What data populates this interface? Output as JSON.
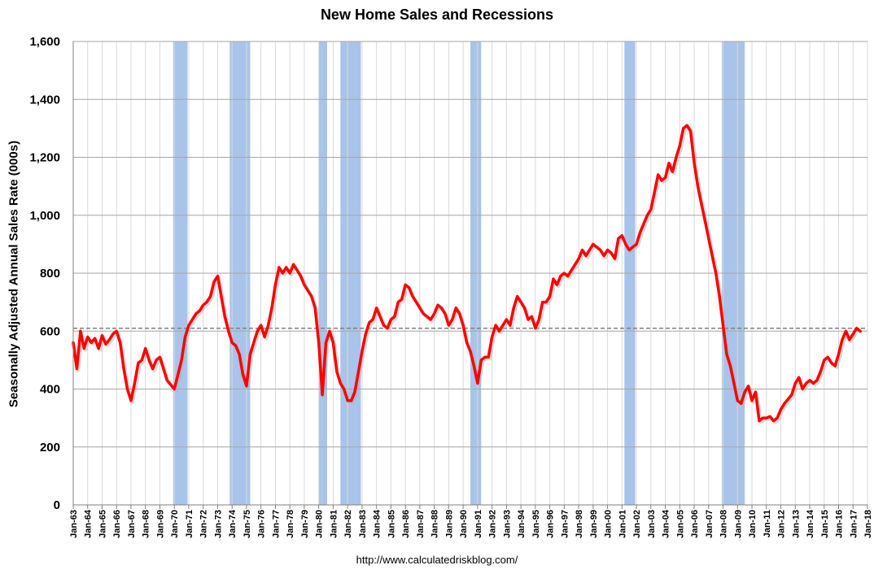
{
  "chart_data": {
    "type": "line",
    "title": "New Home Sales and Recessions",
    "xlabel": "",
    "ylabel": "Seasonally Adjusted Annual Sales Rate (000s)",
    "source": "http://www.calculatedriskblog.com/",
    "ylim": [
      0,
      1600
    ],
    "xlim": [
      "Jan-63",
      "Jan-18"
    ],
    "y_ticks": [
      "0",
      "200",
      "400",
      "600",
      "800",
      "1,000",
      "1,200",
      "1,400",
      "1,600"
    ],
    "x_ticks": [
      "Jan-63",
      "Jan-64",
      "Jan-65",
      "Jan-66",
      "Jan-67",
      "Jan-68",
      "Jan-69",
      "Jan-70",
      "Jan-71",
      "Jan-72",
      "Jan-73",
      "Jan-74",
      "Jan-75",
      "Jan-76",
      "Jan-77",
      "Jan-78",
      "Jan-79",
      "Jan-80",
      "Jan-81",
      "Jan-82",
      "Jan-83",
      "Jan-84",
      "Jan-85",
      "Jan-86",
      "Jan-87",
      "Jan-88",
      "Jan-89",
      "Jan-90",
      "Jan-91",
      "Jan-92",
      "Jan-93",
      "Jan-94",
      "Jan-95",
      "Jan-96",
      "Jan-97",
      "Jan-98",
      "Jan-99",
      "Jan-00",
      "Jan-01",
      "Jan-02",
      "Jan-03",
      "Jan-04",
      "Jan-05",
      "Jan-06",
      "Jan-07",
      "Jan-08",
      "Jan-09",
      "Jan-10",
      "Jan-11",
      "Jan-12",
      "Jan-13",
      "Jan-14",
      "Jan-15",
      "Jan-16",
      "Jan-17",
      "Jan-18"
    ],
    "grid": "vertical and horizontal",
    "reference_line": 610,
    "recessions": [
      {
        "start": "Dec-69",
        "end": "Nov-70"
      },
      {
        "start": "Nov-73",
        "end": "Mar-75"
      },
      {
        "start": "Jan-80",
        "end": "Jul-80"
      },
      {
        "start": "Jul-81",
        "end": "Nov-82"
      },
      {
        "start": "Jul-90",
        "end": "Mar-91"
      },
      {
        "start": "Mar-01",
        "end": "Nov-01"
      },
      {
        "start": "Dec-07",
        "end": "Jun-09"
      }
    ],
    "series": [
      {
        "values": [
          [
            "Jan-63",
            560
          ],
          [
            "Apr-63",
            470
          ],
          [
            "Jul-63",
            600
          ],
          [
            "Oct-63",
            540
          ],
          [
            "Jan-64",
            580
          ],
          [
            "Apr-64",
            560
          ],
          [
            "Jul-64",
            575
          ],
          [
            "Oct-64",
            540
          ],
          [
            "Jan-65",
            585
          ],
          [
            "Apr-65",
            555
          ],
          [
            "Jul-65",
            570
          ],
          [
            "Oct-65",
            590
          ],
          [
            "Jan-66",
            600
          ],
          [
            "Apr-66",
            560
          ],
          [
            "Jul-66",
            470
          ],
          [
            "Oct-66",
            400
          ],
          [
            "Jan-67",
            360
          ],
          [
            "Apr-67",
            420
          ],
          [
            "Jul-67",
            490
          ],
          [
            "Oct-67",
            500
          ],
          [
            "Jan-68",
            540
          ],
          [
            "Apr-68",
            500
          ],
          [
            "Jul-68",
            470
          ],
          [
            "Oct-68",
            500
          ],
          [
            "Jan-69",
            510
          ],
          [
            "Apr-69",
            470
          ],
          [
            "Jul-69",
            430
          ],
          [
            "Oct-69",
            415
          ],
          [
            "Jan-70",
            400
          ],
          [
            "Apr-70",
            450
          ],
          [
            "Jul-70",
            500
          ],
          [
            "Oct-70",
            580
          ],
          [
            "Jan-71",
            620
          ],
          [
            "Apr-71",
            640
          ],
          [
            "Jul-71",
            660
          ],
          [
            "Oct-71",
            670
          ],
          [
            "Jan-72",
            690
          ],
          [
            "Apr-72",
            700
          ],
          [
            "Jul-72",
            720
          ],
          [
            "Oct-72",
            770
          ],
          [
            "Jan-73",
            790
          ],
          [
            "Apr-73",
            720
          ],
          [
            "Jul-73",
            650
          ],
          [
            "Oct-73",
            600
          ],
          [
            "Jan-74",
            560
          ],
          [
            "Apr-74",
            550
          ],
          [
            "Jul-74",
            520
          ],
          [
            "Oct-74",
            450
          ],
          [
            "Jan-75",
            410
          ],
          [
            "Apr-75",
            520
          ],
          [
            "Jul-75",
            560
          ],
          [
            "Oct-75",
            600
          ],
          [
            "Jan-76",
            620
          ],
          [
            "Apr-76",
            580
          ],
          [
            "Jul-76",
            620
          ],
          [
            "Oct-76",
            680
          ],
          [
            "Jan-77",
            760
          ],
          [
            "Apr-77",
            820
          ],
          [
            "Jul-77",
            800
          ],
          [
            "Oct-77",
            820
          ],
          [
            "Jan-78",
            800
          ],
          [
            "Apr-78",
            830
          ],
          [
            "Jul-78",
            810
          ],
          [
            "Oct-78",
            790
          ],
          [
            "Jan-79",
            760
          ],
          [
            "Apr-79",
            740
          ],
          [
            "Jul-79",
            720
          ],
          [
            "Oct-79",
            680
          ],
          [
            "Jan-80",
            560
          ],
          [
            "Apr-80",
            380
          ],
          [
            "Jul-80",
            560
          ],
          [
            "Oct-80",
            600
          ],
          [
            "Jan-81",
            560
          ],
          [
            "Apr-81",
            460
          ],
          [
            "Jul-81",
            420
          ],
          [
            "Oct-81",
            400
          ],
          [
            "Jan-82",
            360
          ],
          [
            "Apr-82",
            360
          ],
          [
            "Jul-82",
            390
          ],
          [
            "Oct-82",
            460
          ],
          [
            "Jan-83",
            530
          ],
          [
            "Apr-83",
            590
          ],
          [
            "Jul-83",
            630
          ],
          [
            "Oct-83",
            640
          ],
          [
            "Jan-84",
            680
          ],
          [
            "Apr-84",
            650
          ],
          [
            "Jul-84",
            620
          ],
          [
            "Oct-84",
            610
          ],
          [
            "Jan-85",
            640
          ],
          [
            "Apr-85",
            650
          ],
          [
            "Jul-85",
            700
          ],
          [
            "Oct-85",
            710
          ],
          [
            "Jan-86",
            760
          ],
          [
            "Apr-86",
            750
          ],
          [
            "Jul-86",
            720
          ],
          [
            "Oct-86",
            700
          ],
          [
            "Jan-87",
            680
          ],
          [
            "Apr-87",
            660
          ],
          [
            "Jul-87",
            650
          ],
          [
            "Oct-87",
            640
          ],
          [
            "Jan-88",
            660
          ],
          [
            "Apr-88",
            690
          ],
          [
            "Jul-88",
            680
          ],
          [
            "Oct-88",
            660
          ],
          [
            "Jan-89",
            620
          ],
          [
            "Apr-89",
            640
          ],
          [
            "Jul-89",
            680
          ],
          [
            "Oct-89",
            660
          ],
          [
            "Jan-90",
            620
          ],
          [
            "Apr-90",
            560
          ],
          [
            "Jul-90",
            530
          ],
          [
            "Oct-90",
            480
          ],
          [
            "Jan-91",
            420
          ],
          [
            "Apr-91",
            500
          ],
          [
            "Jul-91",
            510
          ],
          [
            "Oct-91",
            510
          ],
          [
            "Jan-92",
            580
          ],
          [
            "Apr-92",
            620
          ],
          [
            "Jul-92",
            600
          ],
          [
            "Oct-92",
            620
          ],
          [
            "Jan-93",
            640
          ],
          [
            "Apr-93",
            620
          ],
          [
            "Jul-93",
            680
          ],
          [
            "Oct-93",
            720
          ],
          [
            "Jan-94",
            700
          ],
          [
            "Apr-94",
            680
          ],
          [
            "Jul-94",
            640
          ],
          [
            "Oct-94",
            650
          ],
          [
            "Jan-95",
            610
          ],
          [
            "Apr-95",
            640
          ],
          [
            "Jul-95",
            700
          ],
          [
            "Oct-95",
            700
          ],
          [
            "Jan-96",
            720
          ],
          [
            "Apr-96",
            780
          ],
          [
            "Jul-96",
            760
          ],
          [
            "Oct-96",
            790
          ],
          [
            "Jan-97",
            800
          ],
          [
            "Apr-97",
            790
          ],
          [
            "Jul-97",
            810
          ],
          [
            "Oct-97",
            830
          ],
          [
            "Jan-98",
            850
          ],
          [
            "Apr-98",
            880
          ],
          [
            "Jul-98",
            860
          ],
          [
            "Oct-98",
            880
          ],
          [
            "Jan-99",
            900
          ],
          [
            "Apr-99",
            890
          ],
          [
            "Jul-99",
            880
          ],
          [
            "Oct-99",
            860
          ],
          [
            "Jan-00",
            880
          ],
          [
            "Apr-00",
            870
          ],
          [
            "Jul-00",
            850
          ],
          [
            "Oct-00",
            920
          ],
          [
            "Jan-01",
            930
          ],
          [
            "Apr-01",
            900
          ],
          [
            "Jul-01",
            880
          ],
          [
            "Oct-01",
            890
          ],
          [
            "Jan-02",
            900
          ],
          [
            "Apr-02",
            940
          ],
          [
            "Jul-02",
            970
          ],
          [
            "Oct-02",
            1000
          ],
          [
            "Jan-03",
            1020
          ],
          [
            "Apr-03",
            1080
          ],
          [
            "Jul-03",
            1140
          ],
          [
            "Oct-03",
            1120
          ],
          [
            "Jan-04",
            1130
          ],
          [
            "Apr-04",
            1180
          ],
          [
            "Jul-04",
            1150
          ],
          [
            "Oct-04",
            1200
          ],
          [
            "Jan-05",
            1240
          ],
          [
            "Apr-05",
            1300
          ],
          [
            "Jul-05",
            1310
          ],
          [
            "Oct-05",
            1290
          ],
          [
            "Jan-06",
            1180
          ],
          [
            "Apr-06",
            1100
          ],
          [
            "Jul-06",
            1040
          ],
          [
            "Oct-06",
            980
          ],
          [
            "Jan-07",
            920
          ],
          [
            "Apr-07",
            860
          ],
          [
            "Jul-07",
            800
          ],
          [
            "Oct-07",
            720
          ],
          [
            "Jan-08",
            620
          ],
          [
            "Apr-08",
            520
          ],
          [
            "Jul-08",
            480
          ],
          [
            "Oct-08",
            420
          ],
          [
            "Jan-09",
            360
          ],
          [
            "Apr-09",
            350
          ],
          [
            "Jul-09",
            390
          ],
          [
            "Oct-09",
            410
          ],
          [
            "Jan-10",
            360
          ],
          [
            "Apr-10",
            390
          ],
          [
            "Jul-10",
            290
          ],
          [
            "Oct-10",
            300
          ],
          [
            "Jan-11",
            300
          ],
          [
            "Apr-11",
            305
          ],
          [
            "Jul-11",
            290
          ],
          [
            "Oct-11",
            300
          ],
          [
            "Jan-12",
            330
          ],
          [
            "Apr-12",
            350
          ],
          [
            "Jul-12",
            365
          ],
          [
            "Oct-12",
            380
          ],
          [
            "Jan-13",
            420
          ],
          [
            "Apr-13",
            440
          ],
          [
            "Jul-13",
            400
          ],
          [
            "Oct-13",
            420
          ],
          [
            "Jan-14",
            430
          ],
          [
            "Apr-14",
            420
          ],
          [
            "Jul-14",
            430
          ],
          [
            "Oct-14",
            460
          ],
          [
            "Jan-15",
            500
          ],
          [
            "Apr-15",
            510
          ],
          [
            "Jul-15",
            490
          ],
          [
            "Oct-15",
            480
          ],
          [
            "Jan-16",
            520
          ],
          [
            "Apr-16",
            570
          ],
          [
            "Jul-16",
            600
          ],
          [
            "Oct-16",
            570
          ],
          [
            "Jan-17",
            590
          ],
          [
            "Apr-17",
            610
          ],
          [
            "Jul-17",
            600
          ]
        ]
      }
    ]
  },
  "colors": {
    "line": "#ff0000",
    "recession_band": "#a9c4ea",
    "reference_line": "#808080",
    "grid": "#c0c0c0",
    "background": "#ffffff"
  }
}
